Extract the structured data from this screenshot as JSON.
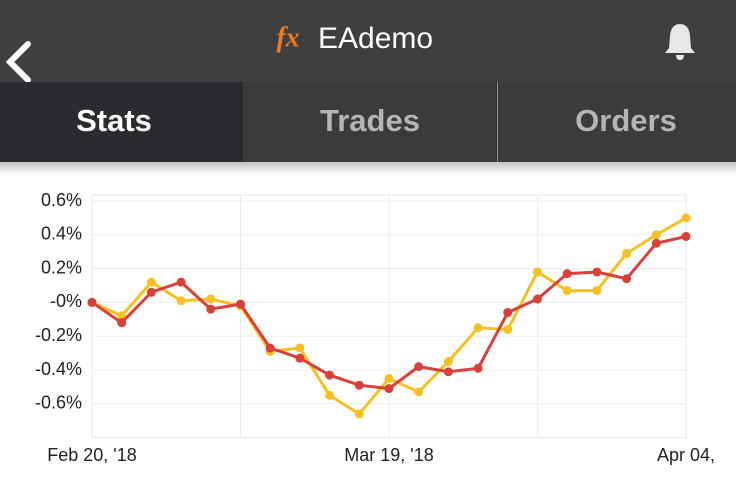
{
  "header": {
    "logo": "fx",
    "title": "EAdemo"
  },
  "tabs": [
    "Stats",
    "Trades",
    "Orders"
  ],
  "chart_data": {
    "type": "line",
    "categories": [
      "Feb 20, '18",
      null,
      null,
      null,
      null,
      null,
      null,
      null,
      null,
      null,
      "Mar 19, '18",
      null,
      null,
      null,
      null,
      null,
      null,
      null,
      null,
      null,
      "Apr 04,"
    ],
    "series": [
      {
        "color": "#f4c025",
        "values": [
          0,
          -0.08,
          0.12,
          0.01,
          0.02,
          -0.02,
          -0.29,
          -0.27,
          -0.55,
          -0.66,
          -0.45,
          -0.53,
          -0.35,
          -0.15,
          -0.16,
          0.18,
          0.07,
          0.07,
          0.29,
          0.4,
          0.5
        ]
      },
      {
        "color": "#d8403a",
        "values": [
          0,
          -0.12,
          0.06,
          0.12,
          -0.04,
          -0.01,
          -0.27,
          -0.33,
          -0.43,
          -0.49,
          -0.51,
          -0.38,
          -0.41,
          -0.39,
          -0.06,
          0.02,
          0.17,
          0.18,
          0.14,
          0.35,
          0.39
        ]
      }
    ],
    "ylim": [
      -0.8,
      0.6
    ],
    "yticks": [
      {
        "value": 0.6,
        "label": "0.6%"
      },
      {
        "value": 0.4,
        "label": "0.4%"
      },
      {
        "value": 0.2,
        "label": "0.2%"
      },
      {
        "value": 0,
        "label": "-0%"
      },
      {
        "value": -0.2,
        "label": "-0.2%"
      },
      {
        "value": -0.4,
        "label": "-0.4%"
      },
      {
        "value": -0.6,
        "label": "-0.6%"
      }
    ],
    "grid": true
  }
}
